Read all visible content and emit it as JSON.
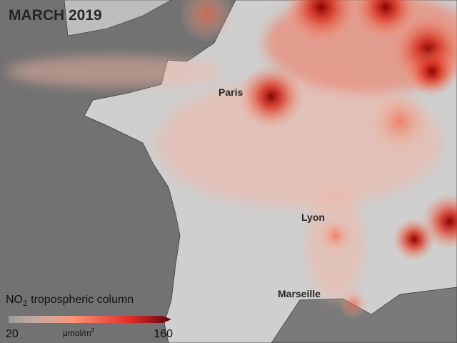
{
  "title": "MARCH 2019",
  "cities": [
    "Paris",
    "Lyon",
    "Marseille"
  ],
  "legend": {
    "title": {
      "species": "NO",
      "subscript": "2",
      "text": "tropospheric column"
    },
    "min": 20,
    "max": 160,
    "unit": {
      "text": "μmol/m",
      "superscript": "2"
    }
  }
}
